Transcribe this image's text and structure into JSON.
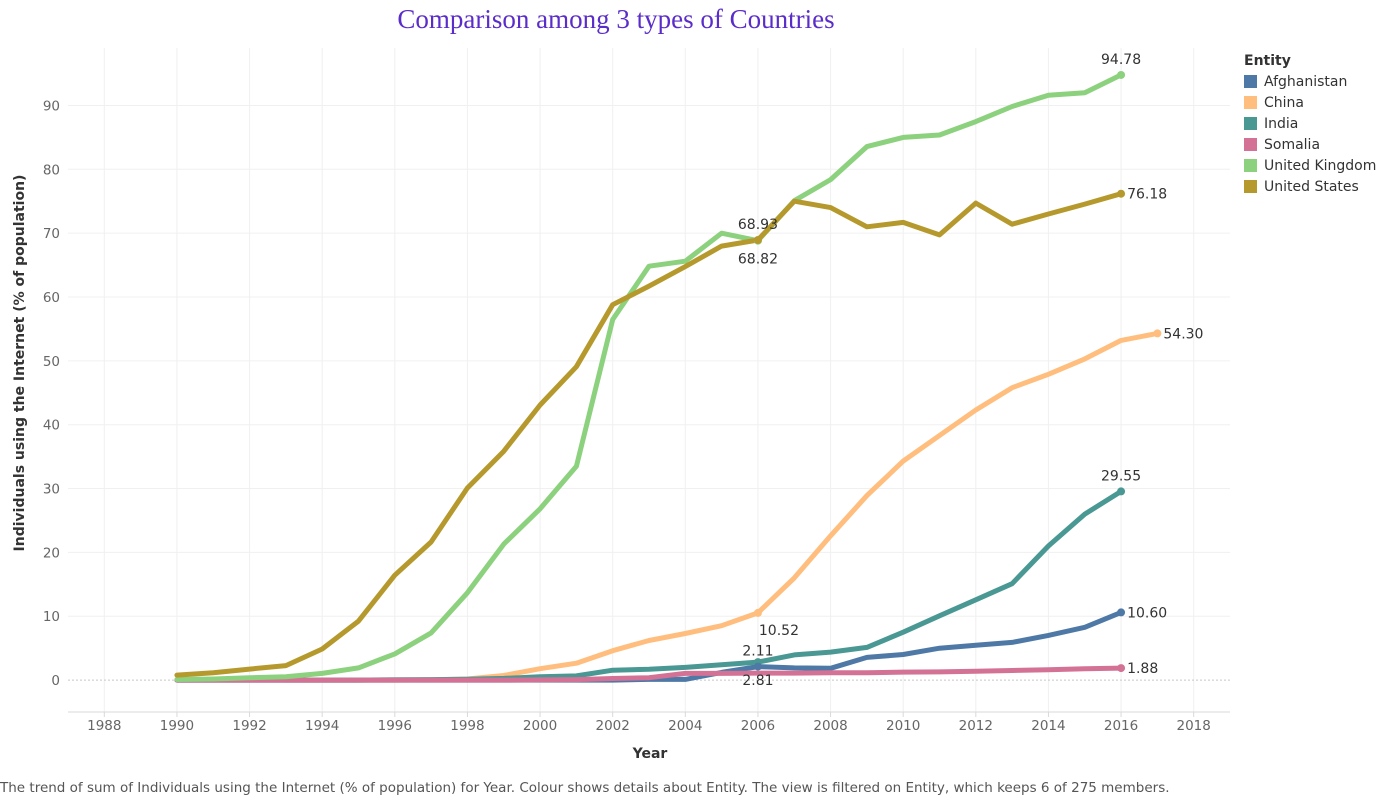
{
  "chart_data": {
    "type": "line",
    "title": "Comparison among 3 types of Countries",
    "xlabel": "Year",
    "ylabel": "Individuals using the Internet (% of population)",
    "xlim": [
      1987,
      2019
    ],
    "ylim": [
      -5,
      99
    ],
    "x_ticks": [
      1988,
      1990,
      1992,
      1994,
      1996,
      1998,
      2000,
      2002,
      2004,
      2006,
      2008,
      2010,
      2012,
      2014,
      2016,
      2018
    ],
    "y_ticks": [
      0,
      10,
      20,
      30,
      40,
      50,
      60,
      70,
      80,
      90
    ],
    "grid": true,
    "legend_position": "right",
    "legend_title": "Entity",
    "series": [
      {
        "name": "Afghanistan",
        "color": "#4e79a7",
        "points": [
          [
            1990,
            0
          ],
          [
            1991,
            0
          ],
          [
            1992,
            0
          ],
          [
            1993,
            0
          ],
          [
            1994,
            0
          ],
          [
            1995,
            0
          ],
          [
            1996,
            0
          ],
          [
            1997,
            0
          ],
          [
            1998,
            0
          ],
          [
            1999,
            0
          ],
          [
            2000,
            0
          ],
          [
            2001,
            0
          ],
          [
            2002,
            0
          ],
          [
            2003,
            0.1
          ],
          [
            2004,
            0.1
          ],
          [
            2005,
            1.2
          ],
          [
            2006,
            2.11
          ],
          [
            2007,
            1.9
          ],
          [
            2008,
            1.84
          ],
          [
            2009,
            3.55
          ],
          [
            2010,
            4.0
          ],
          [
            2011,
            5.0
          ],
          [
            2012,
            5.45
          ],
          [
            2013,
            5.9
          ],
          [
            2014,
            7.0
          ],
          [
            2015,
            8.26
          ],
          [
            2016,
            10.6
          ]
        ]
      },
      {
        "name": "China",
        "color": "#ffbe7d",
        "points": [
          [
            1993,
            0
          ],
          [
            1994,
            0
          ],
          [
            1995,
            0
          ],
          [
            1996,
            0
          ],
          [
            1997,
            0.03
          ],
          [
            1998,
            0.17
          ],
          [
            1999,
            0.71
          ],
          [
            2000,
            1.78
          ],
          [
            2001,
            2.64
          ],
          [
            2002,
            4.6
          ],
          [
            2003,
            6.2
          ],
          [
            2004,
            7.3
          ],
          [
            2005,
            8.52
          ],
          [
            2006,
            10.52
          ],
          [
            2007,
            16.0
          ],
          [
            2008,
            22.6
          ],
          [
            2009,
            28.9
          ],
          [
            2010,
            34.3
          ],
          [
            2011,
            38.3
          ],
          [
            2012,
            42.3
          ],
          [
            2013,
            45.8
          ],
          [
            2014,
            47.9
          ],
          [
            2015,
            50.3
          ],
          [
            2016,
            53.2
          ],
          [
            2017,
            54.3
          ]
        ]
      },
      {
        "name": "India",
        "color": "#499894",
        "points": [
          [
            1990,
            0
          ],
          [
            1991,
            0
          ],
          [
            1992,
            0
          ],
          [
            1993,
            0
          ],
          [
            1994,
            0
          ],
          [
            1995,
            0
          ],
          [
            1996,
            0.05
          ],
          [
            1997,
            0.07
          ],
          [
            1998,
            0.14
          ],
          [
            1999,
            0.27
          ],
          [
            2000,
            0.53
          ],
          [
            2001,
            0.66
          ],
          [
            2002,
            1.54
          ],
          [
            2003,
            1.69
          ],
          [
            2004,
            1.98
          ],
          [
            2005,
            2.39
          ],
          [
            2006,
            2.81
          ],
          [
            2007,
            3.95
          ],
          [
            2008,
            4.38
          ],
          [
            2009,
            5.12
          ],
          [
            2010,
            7.5
          ],
          [
            2011,
            10.07
          ],
          [
            2012,
            12.58
          ],
          [
            2013,
            15.1
          ],
          [
            2014,
            21.0
          ],
          [
            2015,
            26.0
          ],
          [
            2016,
            29.55
          ]
        ]
      },
      {
        "name": "Somalia",
        "color": "#d37295",
        "points": [
          [
            1990,
            0
          ],
          [
            1991,
            0
          ],
          [
            1992,
            0
          ],
          [
            1993,
            0
          ],
          [
            1994,
            0
          ],
          [
            1995,
            0
          ],
          [
            1996,
            0
          ],
          [
            1997,
            0
          ],
          [
            1998,
            0
          ],
          [
            1999,
            0
          ],
          [
            2000,
            0.02
          ],
          [
            2001,
            0.08
          ],
          [
            2002,
            0.25
          ],
          [
            2003,
            0.38
          ],
          [
            2004,
            1.05
          ],
          [
            2005,
            1.05
          ],
          [
            2006,
            1.1
          ],
          [
            2007,
            1.1
          ],
          [
            2008,
            1.15
          ],
          [
            2009,
            1.16
          ],
          [
            2010,
            1.25
          ],
          [
            2011,
            1.28
          ],
          [
            2012,
            1.38
          ],
          [
            2013,
            1.5
          ],
          [
            2014,
            1.63
          ],
          [
            2015,
            1.76
          ],
          [
            2016,
            1.88
          ]
        ]
      },
      {
        "name": "United Kingdom",
        "color": "#8cd17d",
        "points": [
          [
            1990,
            0.09
          ],
          [
            1991,
            0.17
          ],
          [
            1992,
            0.35
          ],
          [
            1993,
            0.52
          ],
          [
            1994,
            1.04
          ],
          [
            1995,
            1.9
          ],
          [
            1996,
            4.1
          ],
          [
            1997,
            7.39
          ],
          [
            1998,
            13.67
          ],
          [
            1999,
            21.29
          ],
          [
            2000,
            26.82
          ],
          [
            2001,
            33.48
          ],
          [
            2002,
            56.48
          ],
          [
            2003,
            64.82
          ],
          [
            2004,
            65.61
          ],
          [
            2005,
            70.0
          ],
          [
            2006,
            68.82
          ],
          [
            2007,
            75.09
          ],
          [
            2008,
            78.39
          ],
          [
            2009,
            83.56
          ],
          [
            2010,
            85.0
          ],
          [
            2011,
            85.38
          ],
          [
            2012,
            87.48
          ],
          [
            2013,
            89.84
          ],
          [
            2014,
            91.61
          ],
          [
            2015,
            92.0
          ],
          [
            2016,
            94.78
          ]
        ]
      },
      {
        "name": "United States",
        "color": "#b6992d",
        "points": [
          [
            1990,
            0.78
          ],
          [
            1991,
            1.16
          ],
          [
            1992,
            1.72
          ],
          [
            1993,
            2.27
          ],
          [
            1994,
            4.86
          ],
          [
            1995,
            9.24
          ],
          [
            1996,
            16.42
          ],
          [
            1997,
            21.62
          ],
          [
            1998,
            30.09
          ],
          [
            1999,
            35.85
          ],
          [
            2000,
            43.08
          ],
          [
            2001,
            49.08
          ],
          [
            2002,
            58.79
          ],
          [
            2003,
            61.7
          ],
          [
            2004,
            64.76
          ],
          [
            2005,
            67.97
          ],
          [
            2006,
            68.93
          ],
          [
            2007,
            75.0
          ],
          [
            2008,
            74.0
          ],
          [
            2009,
            71.0
          ],
          [
            2010,
            71.69
          ],
          [
            2011,
            69.73
          ],
          [
            2012,
            74.7
          ],
          [
            2013,
            71.4
          ],
          [
            2014,
            73.0
          ],
          [
            2015,
            74.55
          ],
          [
            2016,
            76.18
          ]
        ]
      }
    ],
    "annotations": [
      {
        "text": "94.78",
        "x": 2016,
        "y": 94.78,
        "pos": "above"
      },
      {
        "text": "76.18",
        "x": 2016,
        "y": 76.18,
        "pos": "right"
      },
      {
        "text": "54.30",
        "x": 2017,
        "y": 54.3,
        "pos": "right"
      },
      {
        "text": "29.55",
        "x": 2016,
        "y": 29.55,
        "pos": "above"
      },
      {
        "text": "10.60",
        "x": 2016,
        "y": 10.6,
        "pos": "right"
      },
      {
        "text": "1.88",
        "x": 2016,
        "y": 1.88,
        "pos": "right"
      },
      {
        "text": "68.93",
        "x": 2006,
        "y": 68.93,
        "pos": "above"
      },
      {
        "text": "68.82",
        "x": 2006,
        "y": 68.82,
        "pos": "below"
      },
      {
        "text": "10.52",
        "x": 2006,
        "y": 10.52,
        "pos": "below-right"
      },
      {
        "text": "2.11",
        "x": 2006,
        "y": 2.11,
        "pos": "above"
      },
      {
        "text": "2.81",
        "x": 2006,
        "y": 2.81,
        "pos": "below"
      }
    ],
    "highlight_points": [
      {
        "series": "United Kingdom",
        "x": 2016,
        "y": 94.78
      },
      {
        "series": "United States",
        "x": 2016,
        "y": 76.18
      },
      {
        "series": "China",
        "x": 2017,
        "y": 54.3
      },
      {
        "series": "India",
        "x": 2016,
        "y": 29.55
      },
      {
        "series": "Afghanistan",
        "x": 2016,
        "y": 10.6
      },
      {
        "series": "Somalia",
        "x": 2016,
        "y": 1.88
      },
      {
        "series": "United Kingdom",
        "x": 2006,
        "y": 68.82
      },
      {
        "series": "United States",
        "x": 2006,
        "y": 68.93
      },
      {
        "series": "China",
        "x": 2006,
        "y": 10.52
      },
      {
        "series": "India",
        "x": 2006,
        "y": 2.81
      },
      {
        "series": "Afghanistan",
        "x": 2006,
        "y": 2.11
      }
    ]
  },
  "caption": "The trend of sum of Individuals using the Internet (% of population) for Year.  Colour shows details about Entity. The view is filtered on Entity, which keeps 6 of 275 members."
}
